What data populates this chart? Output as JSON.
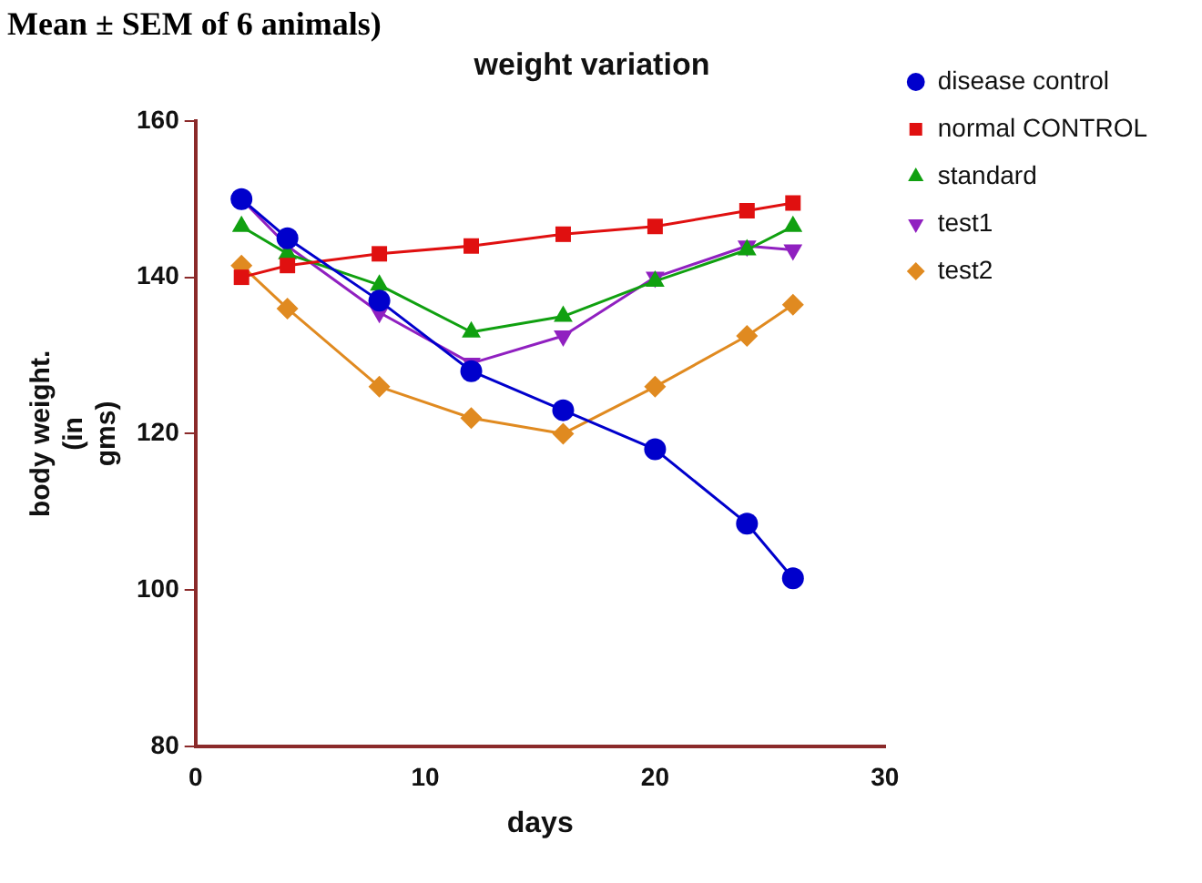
{
  "chart_data": {
    "type": "line",
    "title": "weight variation",
    "xlabel": "days",
    "ylabel": "body weight.\n(in\ngms)",
    "annotations": [
      "Mean ± SEM of 6 animals)"
    ],
    "x": [
      2,
      4,
      8,
      12,
      16,
      20,
      24,
      26
    ],
    "series": [
      {
        "name": "disease control",
        "color": "#0000cc",
        "marker": "circle",
        "values": [
          150,
          145,
          137,
          128,
          123,
          118,
          108.5,
          101.5
        ]
      },
      {
        "name": "normal CONTROL",
        "color": "#e01010",
        "marker": "square",
        "values": [
          140,
          141.5,
          143,
          144,
          145.5,
          146.5,
          148.5,
          149.5
        ]
      },
      {
        "name": "standard",
        "color": "#10a010",
        "marker": "triangle",
        "values": [
          146.5,
          143,
          139,
          133,
          135,
          139.5,
          143.5,
          146.5
        ]
      },
      {
        "name": "test1",
        "color": "#9020c0",
        "marker": "triangle-down",
        "values": [
          150,
          144,
          135.5,
          129,
          132.5,
          140,
          144,
          143.5
        ]
      },
      {
        "name": "test2",
        "color": "#e08a20",
        "marker": "diamond",
        "values": [
          141.5,
          136,
          126,
          122,
          120,
          126,
          132.5,
          136.5
        ]
      }
    ],
    "xlim": [
      0,
      30
    ],
    "xticks": [
      0,
      10,
      20,
      30
    ],
    "ylim": [
      80,
      160
    ],
    "yticks": [
      80,
      100,
      120,
      140,
      160
    ],
    "grid": false,
    "legend": "right"
  }
}
